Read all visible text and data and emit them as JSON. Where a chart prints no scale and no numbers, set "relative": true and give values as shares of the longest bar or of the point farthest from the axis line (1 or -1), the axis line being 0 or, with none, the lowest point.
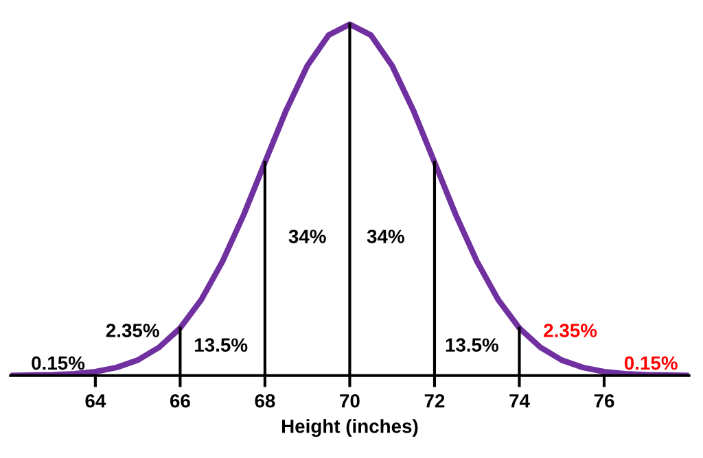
{
  "chart_data": {
    "type": "line",
    "relative": true,
    "xlabel": "Height (inches)",
    "x": [
      62,
      62.5,
      63,
      63.5,
      64,
      64.5,
      65,
      65.5,
      66,
      66.5,
      67,
      67.5,
      68,
      68.5,
      69,
      69.5,
      70,
      70.5,
      71,
      71.5,
      72,
      72.5,
      73,
      73.5,
      74,
      74.5,
      75,
      75.5,
      76,
      76.5,
      77,
      77.5,
      78
    ],
    "series": [
      {
        "color": "#7030a0",
        "values": [
          0,
          0.001,
          0.002,
          0.005,
          0.011,
          0.023,
          0.044,
          0.08,
          0.135,
          0.216,
          0.325,
          0.458,
          0.607,
          0.755,
          0.882,
          0.969,
          1,
          0.969,
          0.882,
          0.755,
          0.607,
          0.458,
          0.325,
          0.216,
          0.135,
          0.08,
          0.044,
          0.023,
          0.011,
          0.005,
          0.002,
          0.001,
          0
        ]
      }
    ],
    "xlim": [
      62,
      78
    ],
    "xticks": [
      64,
      66,
      68,
      70,
      72,
      74,
      76
    ],
    "ref_lines": [
      {
        "axis": "x",
        "value": 66,
        "color": "#000000"
      },
      {
        "axis": "x",
        "value": 68,
        "color": "#000000"
      },
      {
        "axis": "x",
        "value": 70,
        "color": "#000000"
      },
      {
        "axis": "x",
        "value": 72,
        "color": "#000000"
      },
      {
        "axis": "x",
        "value": 74,
        "color": "#000000"
      }
    ],
    "annotations": [
      "0.15%",
      "2.35%",
      "13.5%",
      "34%",
      "34%",
      "13.5%",
      "2.35%",
      "0.15%"
    ],
    "grid": false,
    "legend": false,
    "marker": "none",
    "line_style": "solid",
    "tick_labels": "x"
  }
}
